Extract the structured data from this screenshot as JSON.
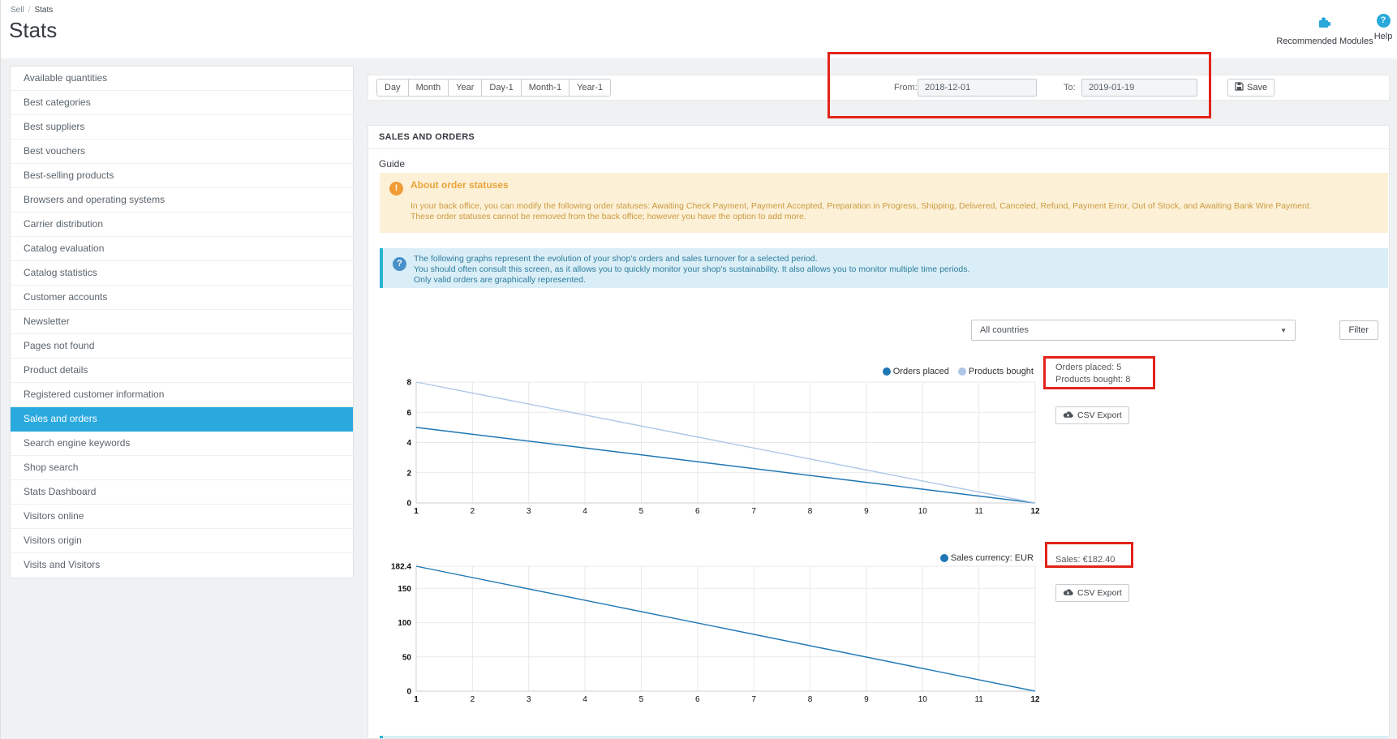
{
  "colors": {
    "accent": "#2aa9df",
    "chart_primary": "#1f77b4",
    "chart_secondary": "#aec7e8",
    "annotation": "#e2231a"
  },
  "icons": {
    "chevron_down": "▼",
    "warning_glyph": "!",
    "info_glyph": "?",
    "help_glyph": "?"
  },
  "breadcrumb": {
    "section": "Sell",
    "separator": "/",
    "current": "Stats"
  },
  "page": {
    "title": "Stats"
  },
  "header": {
    "recommended_modules_label": "Recommended Modules",
    "help_label": "Help"
  },
  "sidebar": {
    "items": [
      {
        "label": "Available quantities",
        "active": false
      },
      {
        "label": "Best categories",
        "active": false
      },
      {
        "label": "Best suppliers",
        "active": false
      },
      {
        "label": "Best vouchers",
        "active": false
      },
      {
        "label": "Best-selling products",
        "active": false
      },
      {
        "label": "Browsers and operating systems",
        "active": false
      },
      {
        "label": "Carrier distribution",
        "active": false
      },
      {
        "label": "Catalog evaluation",
        "active": false
      },
      {
        "label": "Catalog statistics",
        "active": false
      },
      {
        "label": "Customer accounts",
        "active": false
      },
      {
        "label": "Newsletter",
        "active": false
      },
      {
        "label": "Pages not found",
        "active": false
      },
      {
        "label": "Product details",
        "active": false
      },
      {
        "label": "Registered customer information",
        "active": false
      },
      {
        "label": "Sales and orders",
        "active": true
      },
      {
        "label": "Search engine keywords",
        "active": false
      },
      {
        "label": "Shop search",
        "active": false
      },
      {
        "label": "Stats Dashboard",
        "active": false
      },
      {
        "label": "Visitors online",
        "active": false
      },
      {
        "label": "Visitors origin",
        "active": false
      },
      {
        "label": "Visits and Visitors",
        "active": false
      }
    ]
  },
  "toolbar": {
    "periods": [
      "Day",
      "Month",
      "Year",
      "Day-1",
      "Month-1",
      "Year-1"
    ],
    "from_label": "From:",
    "from_value": "2018-12-01",
    "to_label": "To:",
    "to_value": "2019-01-19",
    "save_label": "Save"
  },
  "panel": {
    "title": "SALES AND ORDERS",
    "guide_label": "Guide",
    "warning_alert": {
      "title": "About order statuses",
      "line1": "In your back office, you can modify the following order statuses: Awaiting Check Payment, Payment Accepted, Preparation in Progress, Shipping, Delivered, Canceled, Refund, Payment Error, Out of Stock, and Awaiting Bank Wire Payment.",
      "line2": "These order statuses cannot be removed from the back office; however you have the option to add more."
    },
    "info_alert": {
      "line1": "The following graphs represent the evolution of your shop's orders and sales turnover for a selected period.",
      "line2": "You should often consult this screen, as it allows you to quickly monitor your shop's sustainability. It also allows you to monitor multiple time periods.",
      "line3": "Only valid orders are graphically represented."
    },
    "country_filter": {
      "selected": "All countries",
      "filter_label": "Filter"
    },
    "orders_summary": {
      "line1": "Orders placed: 5",
      "line2": "Products bought: 8"
    },
    "sales_summary": {
      "line1": "Sales: €182.40"
    },
    "csv_export_label": "CSV Export"
  },
  "chart_data": [
    {
      "type": "line",
      "title": "Orders placed and products bought",
      "xlabel": "",
      "ylabel": "",
      "x": [
        1,
        12
      ],
      "xlim": [
        1,
        12
      ],
      "xticks": [
        1,
        2,
        3,
        4,
        5,
        6,
        7,
        8,
        9,
        10,
        11,
        12
      ],
      "ylim": [
        0,
        8
      ],
      "yticks": [
        0,
        2,
        4,
        6,
        8
      ],
      "grid": true,
      "legend_position": "top-right",
      "series": [
        {
          "name": "Orders placed",
          "color": "#1f77b4",
          "values": [
            5,
            0
          ]
        },
        {
          "name": "Products bought",
          "color": "#aec7e8",
          "values": [
            8,
            0
          ]
        }
      ]
    },
    {
      "type": "line",
      "title": "Sales turnover",
      "xlabel": "",
      "ylabel": "",
      "x": [
        1,
        12
      ],
      "xlim": [
        1,
        12
      ],
      "xticks": [
        1,
        2,
        3,
        4,
        5,
        6,
        7,
        8,
        9,
        10,
        11,
        12
      ],
      "ylim": [
        0,
        182.4
      ],
      "yticks": [
        0,
        50,
        100,
        150,
        182.4
      ],
      "grid": true,
      "legend_position": "top-right",
      "series": [
        {
          "name": "Sales currency: EUR",
          "color": "#1f77b4",
          "values": [
            182.4,
            0
          ]
        }
      ]
    }
  ]
}
